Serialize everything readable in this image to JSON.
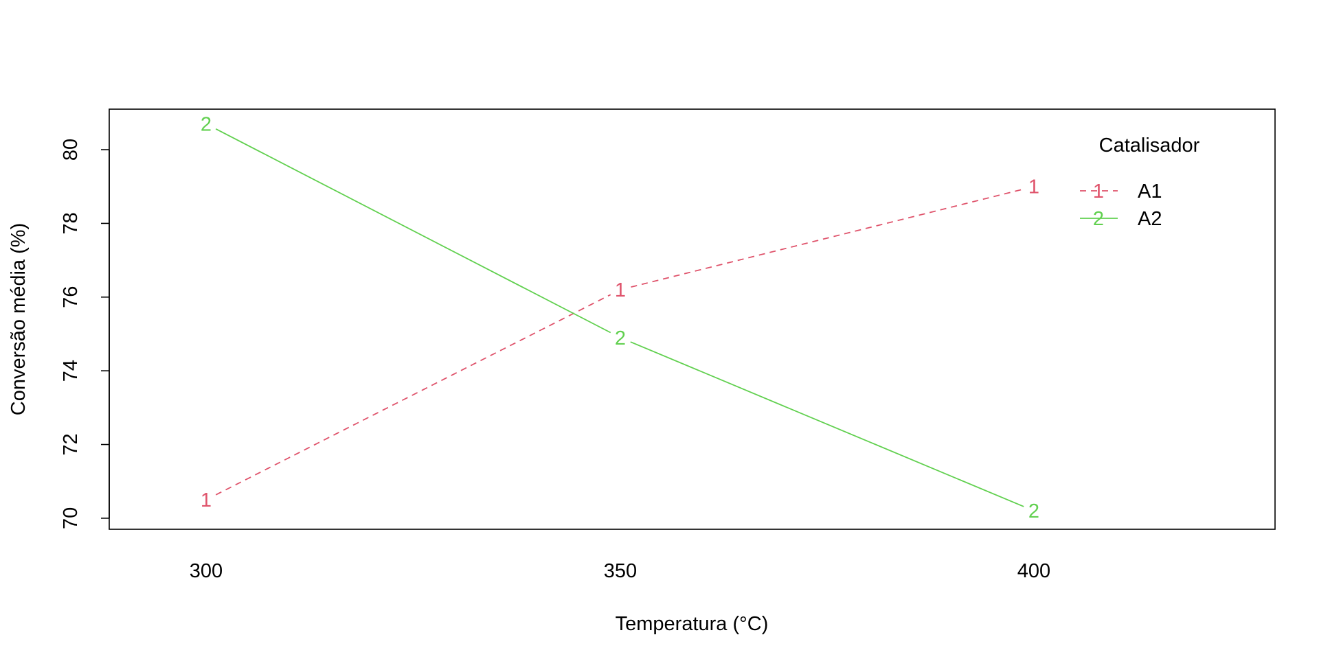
{
  "chart_data": {
    "type": "line",
    "title": "",
    "xlabel": "Temperatura (°C)",
    "ylabel": "Conversão média (%)",
    "categories": [
      "300",
      "350",
      "400"
    ],
    "ylim": [
      69.7,
      81.1
    ],
    "yticks": [
      "70",
      "72",
      "74",
      "76",
      "78",
      "80"
    ],
    "grid": false,
    "legend": {
      "title": "Catalisador",
      "position": "top-right"
    },
    "series": [
      {
        "name": "A1",
        "symbol": "1",
        "color": "#DF536B",
        "linestyle": "dashed",
        "values": [
          70.5,
          76.2,
          79.0
        ]
      },
      {
        "name": "A2",
        "symbol": "2",
        "color": "#61D04F",
        "linestyle": "solid",
        "values": [
          80.7,
          74.9,
          70.2
        ]
      }
    ]
  }
}
